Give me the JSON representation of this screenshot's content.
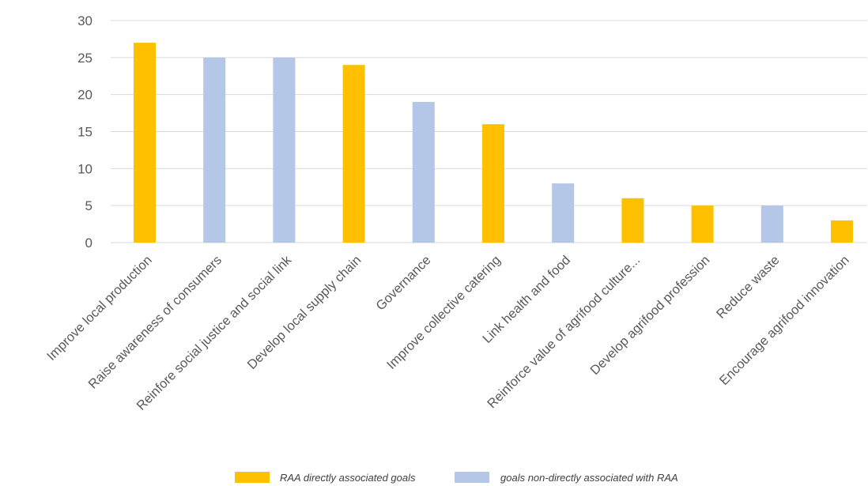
{
  "chart_data": {
    "type": "bar",
    "categories": [
      "Improve local production",
      "Raise awareness of consumers",
      "Reinfore social justice and social link",
      "Develop local supply chain",
      "Governance",
      "Improve collective catering",
      "Link health and food",
      "Reinforce value of agrifood culture...",
      "Develop agrifood profession",
      "Reduce waste",
      "Encourage agrifood innovation"
    ],
    "values": [
      27,
      25,
      25,
      24,
      19,
      16,
      8,
      6,
      5,
      5,
      3
    ],
    "groups": [
      "direct",
      "indirect",
      "indirect",
      "direct",
      "indirect",
      "direct",
      "indirect",
      "direct",
      "direct",
      "indirect",
      "direct"
    ],
    "series": [
      {
        "key": "direct",
        "name": "RAA directly associated goals",
        "color": "#FFC000"
      },
      {
        "key": "indirect",
        "name": "goals non-directly associated with RAA",
        "color": "#B4C7E7"
      }
    ],
    "title": "",
    "xlabel": "",
    "ylabel": "",
    "ylim": [
      0,
      30
    ],
    "yticks": [
      "0",
      "5",
      "10",
      "15",
      "20",
      "25",
      "30"
    ],
    "grid": true,
    "legend": "bottom"
  }
}
